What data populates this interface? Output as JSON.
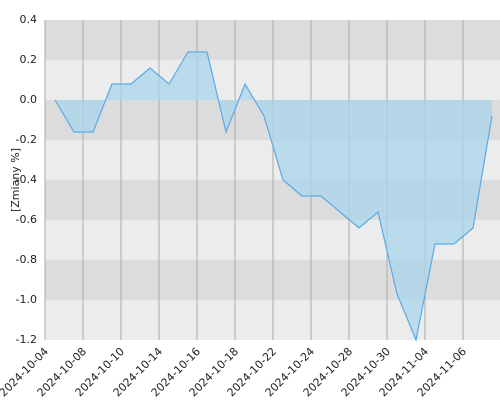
{
  "chart_data": {
    "type": "area",
    "y_label": "[Zmiany %]",
    "categories": [
      "2024-10-04",
      null,
      "2024-10-08",
      null,
      "2024-10-10",
      null,
      "2024-10-14",
      null,
      "2024-10-16",
      null,
      "2024-10-18",
      null,
      "2024-10-22",
      null,
      "2024-10-24",
      null,
      "2024-10-28",
      null,
      "2024-10-30",
      null,
      "2024-11-04",
      null,
      "2024-11-06",
      null
    ],
    "values": [
      0,
      -0.16,
      -0.16,
      0.08,
      0.08,
      0.16,
      0.08,
      0.24,
      0.24,
      -0.16,
      0.08,
      -0.08,
      -0.4,
      -0.48,
      -0.48,
      -0.56,
      -0.64,
      -0.56,
      -0.97,
      -1.2,
      -0.72,
      -0.72,
      -0.64,
      -0.08
    ],
    "color": "#5aaae6",
    "fill": "#a9d6ec",
    "ylim": [
      -1.2,
      0.4
    ],
    "yticks": [
      0.4,
      0.2,
      {
        "value": 0,
        "label": "0.0"
      },
      -0.2,
      -0.4,
      -0.6,
      -0.8,
      {
        "value": -1,
        "label": "-1.0"
      },
      -1.2
    ],
    "grid": true
  }
}
